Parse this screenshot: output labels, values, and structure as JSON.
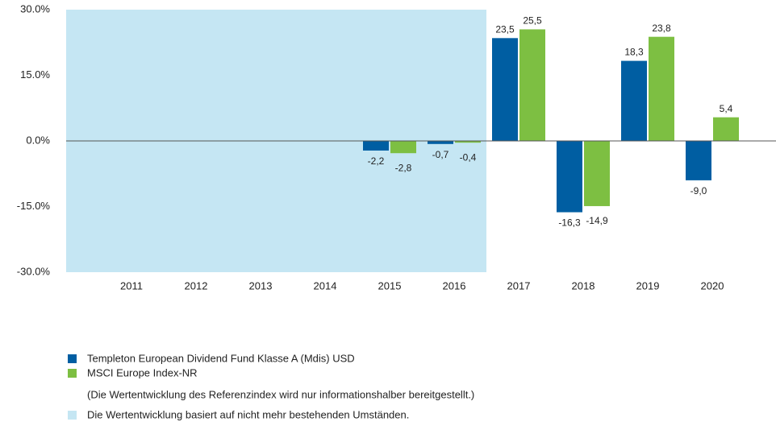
{
  "chart_data": {
    "type": "bar",
    "categories": [
      "2011",
      "2012",
      "2013",
      "2014",
      "2015",
      "2016",
      "2017",
      "2018",
      "2019",
      "2020"
    ],
    "series": [
      {
        "name": "Templeton European Dividend Fund Klasse A (Mdis) USD",
        "color": "#005ea2",
        "values": [
          null,
          null,
          null,
          null,
          -2.2,
          -0.7,
          23.5,
          -16.3,
          18.3,
          -9.0
        ],
        "value_labels": [
          null,
          null,
          null,
          null,
          "-2,2",
          "-0,7",
          "23,5",
          "-16,3",
          "18,3",
          "-9,0"
        ]
      },
      {
        "name": "MSCI Europe Index-NR",
        "color": "#7dbf42",
        "values": [
          null,
          null,
          null,
          null,
          -2.8,
          -0.4,
          25.5,
          -14.9,
          23.8,
          5.4
        ],
        "value_labels": [
          null,
          null,
          null,
          null,
          "-2,8",
          "-0,4",
          "25,5",
          "-14,9",
          "23,8",
          "5,4"
        ]
      }
    ],
    "ylim": [
      -30,
      30
    ],
    "yticks": [
      {
        "value": -30,
        "label": "-30.0%"
      },
      {
        "value": -15,
        "label": "-15.0%"
      },
      {
        "value": 0,
        "label": "0.0%"
      },
      {
        "value": 15,
        "label": "15.0%"
      },
      {
        "value": 30,
        "label": "30.0%"
      }
    ],
    "note": "(Die Wertentwicklung des Referenzindex wird nur informationshalber bereitgestellt.)",
    "shaded": [
      true,
      true,
      true,
      true,
      true,
      true,
      false,
      false,
      false,
      false
    ],
    "shaded_color": "#c5e6f3",
    "shaded_label": "Die Wertentwicklung basiert auf nicht mehr bestehenden Umständen."
  }
}
